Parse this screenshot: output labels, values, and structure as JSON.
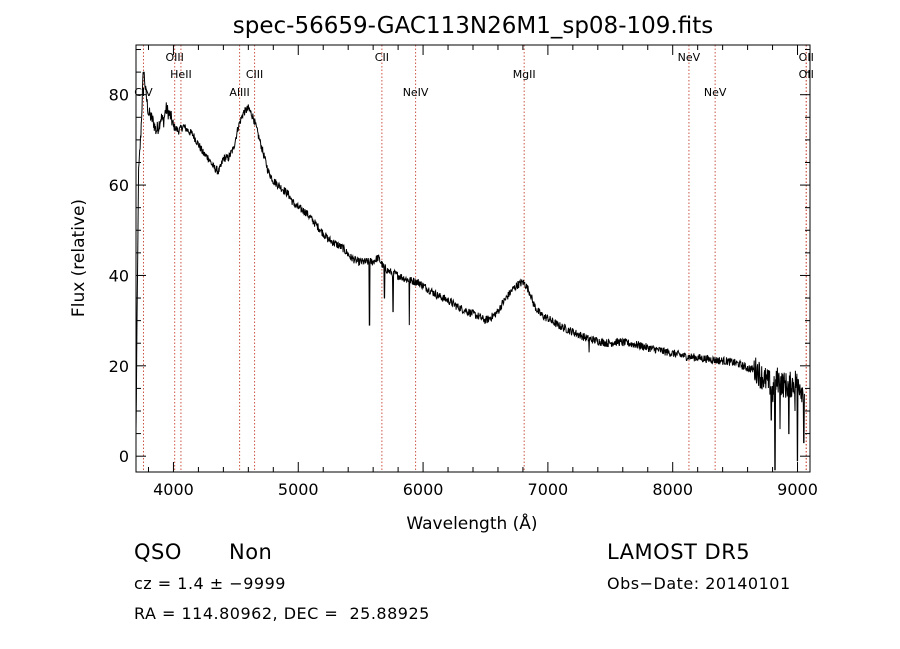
{
  "chart_data": {
    "type": "line",
    "title": "spec-56659-GAC113N26M1_sp08-109.fits",
    "xlabel": "Wavelength (Å)",
    "ylabel": "Flux (relative)",
    "xlim": [
      3700,
      9100
    ],
    "ylim": [
      -3.5,
      91
    ],
    "x_ticks": [
      4000,
      5000,
      6000,
      7000,
      8000,
      9000
    ],
    "x_tick_labels": [
      "4000",
      "5000",
      "6000",
      "7000",
      "8000",
      "9000"
    ],
    "y_ticks": [
      0,
      20,
      40,
      60,
      80
    ],
    "y_tick_labels": [
      "0",
      "20",
      "40",
      "60",
      "80"
    ],
    "grid": false,
    "line_color": "#000000",
    "marker_color": "#cc5544",
    "lines": [
      {
        "label": "CIV",
        "x": 3760,
        "row": 2
      },
      {
        "label": "OIII",
        "x": 4010,
        "row": 0
      },
      {
        "label": "HeII",
        "x": 4060,
        "row": 1
      },
      {
        "label": "AlIII",
        "x": 4530,
        "row": 2
      },
      {
        "label": "CIII",
        "x": 4650,
        "row": 1
      },
      {
        "label": "CII",
        "x": 5670,
        "row": 0
      },
      {
        "label": "NeIV",
        "x": 5940,
        "row": 2
      },
      {
        "label": "MgII",
        "x": 6810,
        "row": 1
      },
      {
        "label": "NeV",
        "x": 8130,
        "row": 0
      },
      {
        "label": "NeV",
        "x": 8340,
        "row": 2
      },
      {
        "label": "OII",
        "x": 9070,
        "row": 0
      },
      {
        "label": "OII",
        "x": 9070,
        "row": 1
      }
    ],
    "series": [
      {
        "x": [
          3700,
          3720,
          3740,
          3760,
          3780,
          3800,
          3820,
          3840,
          3860,
          3880,
          3900,
          3920,
          3940,
          3960,
          3980,
          4000,
          4040,
          4080,
          4120,
          4160,
          4200,
          4240,
          4280,
          4320,
          4360,
          4380,
          4400,
          4440,
          4480,
          4520,
          4560,
          4600,
          4640,
          4680,
          4720,
          4760,
          4800,
          4840,
          4880,
          4920,
          4960,
          5000,
          5060,
          5120,
          5180,
          5240,
          5300,
          5360,
          5420,
          5480,
          5540,
          5600,
          5640,
          5680,
          5720,
          5800,
          5880,
          5960,
          6040,
          6120,
          6200,
          6280,
          6360,
          6440,
          6500,
          6560,
          6600,
          6640,
          6680,
          6720,
          6760,
          6800,
          6820,
          6840,
          6860,
          6880,
          6920,
          6960,
          7000,
          7080,
          7160,
          7240,
          7320,
          7400,
          7480,
          7560,
          7640,
          7720,
          7800,
          7880,
          7960,
          8040,
          8120,
          8200,
          8280,
          8360,
          8440,
          8520,
          8600,
          8680,
          8700,
          8740,
          8780,
          8800,
          8840,
          8880,
          8920,
          8960,
          9000,
          9040,
          9060
        ],
        "y": [
          5,
          62,
          72,
          86,
          80,
          76,
          75,
          74,
          72,
          73,
          75,
          74,
          77,
          76,
          75,
          73,
          72,
          73,
          72,
          71,
          69,
          67,
          66,
          64,
          63,
          64,
          66,
          66,
          68,
          73,
          76,
          77,
          75,
          71,
          67,
          63,
          61,
          60,
          59,
          58,
          56,
          55,
          54,
          52,
          50,
          48,
          47,
          46,
          44,
          43,
          43,
          43,
          44,
          42,
          41,
          40,
          39,
          38.5,
          37,
          35.5,
          34.5,
          33,
          32,
          31,
          30,
          31,
          32,
          34,
          35.5,
          37,
          38,
          38.5,
          38,
          37,
          36,
          34,
          32,
          31,
          30.5,
          29,
          28,
          27,
          26,
          25.5,
          25,
          25.3,
          25,
          24.6,
          24,
          23.5,
          23,
          22.5,
          22,
          21.8,
          21.5,
          21.2,
          21,
          20.5,
          19.5,
          19,
          18,
          17,
          16,
          14,
          17,
          16,
          15.5,
          16,
          17,
          14.5,
          15
        ]
      }
    ]
  },
  "info": {
    "object_class": "QSO",
    "subclass": "Non",
    "survey": "LAMOST DR5",
    "redshift": "cz = 1.4 ± −9999",
    "obs_date": "Obs−Date: 20140101",
    "coords": "RA = 114.80962, DEC =  25.88925"
  }
}
